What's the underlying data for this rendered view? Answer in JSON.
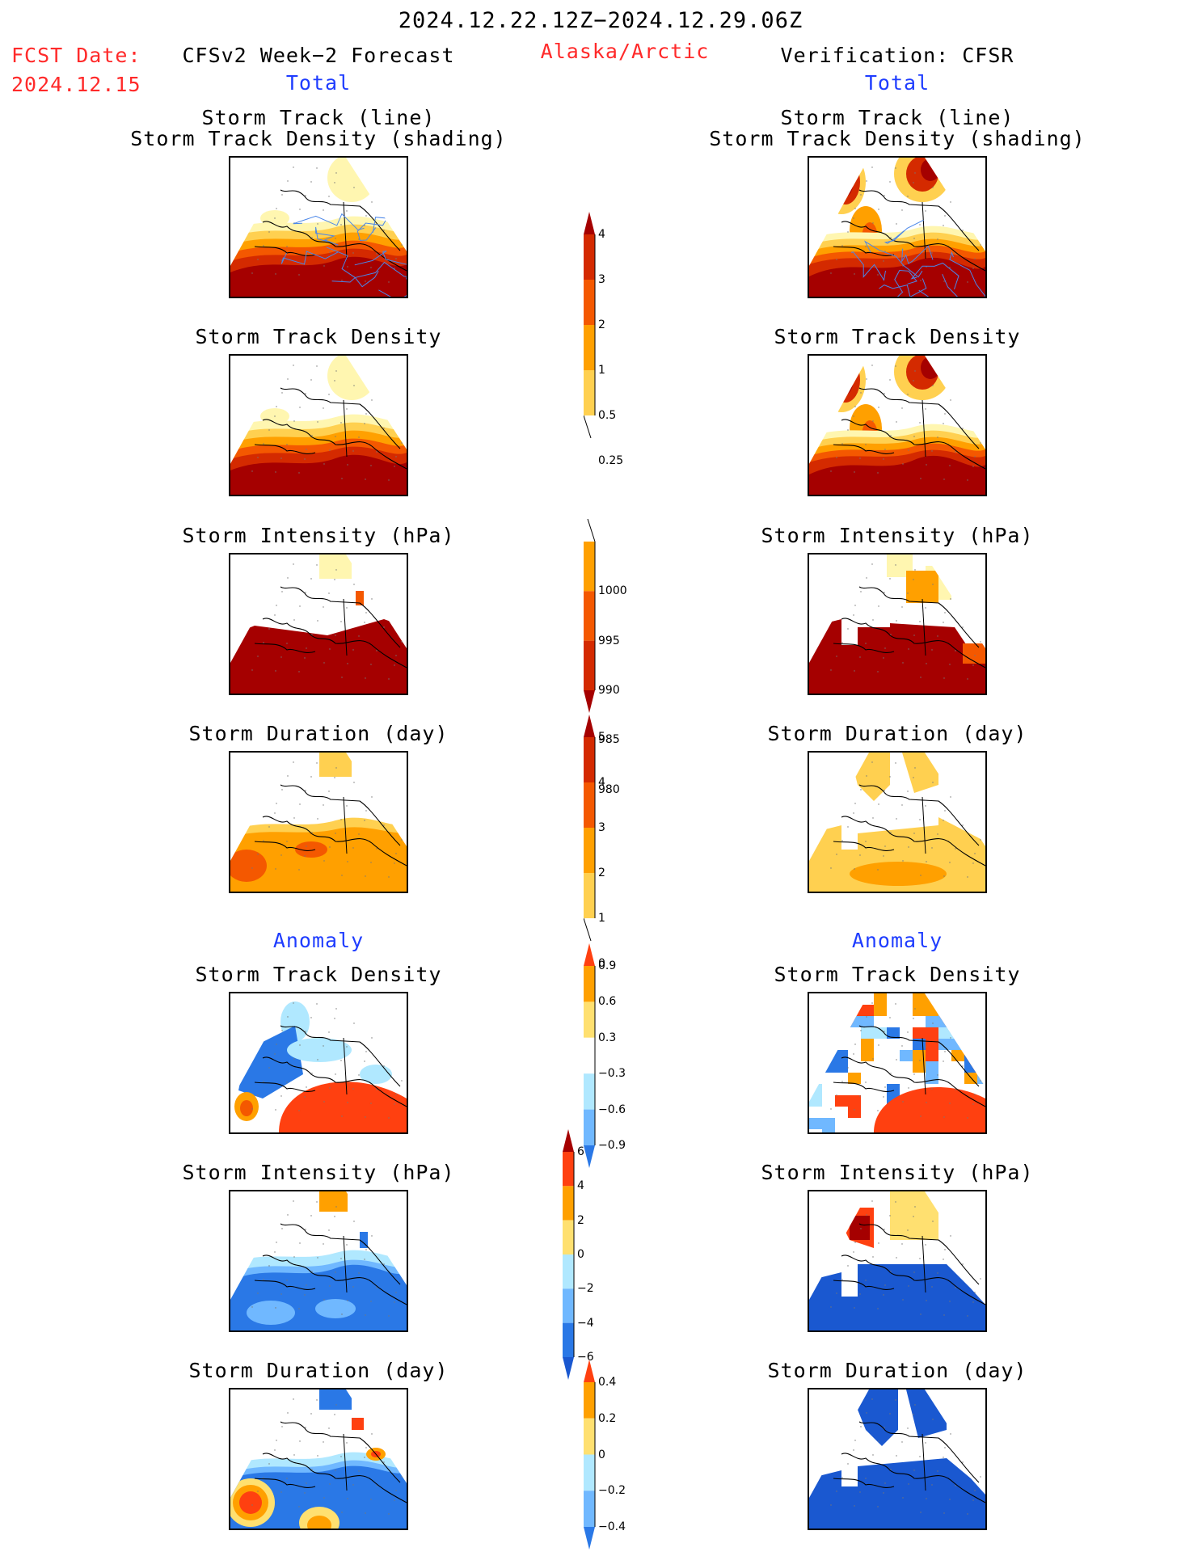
{
  "header": {
    "period": "2024.12.22.12Z−2024.12.29.06Z",
    "fcst_label": "FCST Date:",
    "fcst_date": "2024.12.15",
    "left_title": "CFSv2 Week−2 Forecast",
    "region": "Alaska/Arctic",
    "right_title": "Verification: CFSR",
    "total_left": "Total",
    "total_right": "Total",
    "anomaly_left": "Anomaly",
    "anomaly_right": "Anomaly"
  },
  "panel_titles": {
    "track_line": "Storm Track (line)",
    "track_density_shading": "Storm Track Density (shading)",
    "density": "Storm Track Density",
    "intensity": "Storm Intensity (hPa)",
    "duration": "Storm Duration (day)"
  },
  "colorbars": {
    "density_total": {
      "labels": [
        "4",
        "3",
        "2",
        "1",
        "0.5",
        "0.25"
      ],
      "colors": [
        "#a50000",
        "#d42a00",
        "#f45800",
        "#ffa000",
        "#ffd050",
        "#fff6b0"
      ]
    },
    "intensity_total": {
      "labels": [
        "1000",
        "995",
        "990",
        "985",
        "980"
      ],
      "colors": [
        "#fff6b0",
        "#ffa000",
        "#f45800",
        "#d42a00",
        "#a50000"
      ]
    },
    "duration_total": {
      "labels": [
        "5",
        "4",
        "3",
        "2",
        "1",
        "0"
      ],
      "colors": [
        "#a50000",
        "#d42a00",
        "#f45800",
        "#ffa000",
        "#ffd050",
        "#fff6b0"
      ]
    },
    "density_anom": {
      "labels": [
        "0.9",
        "0.6",
        "0.3",
        "−0.3",
        "−0.6",
        "−0.9"
      ],
      "colors": [
        "#ff4010",
        "#ffa000",
        "#ffe070",
        "#ffffff",
        "#b0e8ff",
        "#70b8ff",
        "#2a78e6"
      ]
    },
    "intensity_anom": {
      "labels": [
        "6",
        "4",
        "2",
        "0",
        "−2",
        "−4",
        "−6"
      ],
      "colors": [
        "#a50000",
        "#ff4010",
        "#ffa000",
        "#ffe070",
        "#b0e8ff",
        "#70b8ff",
        "#2a78e6",
        "#1a58d0"
      ]
    },
    "duration_anom": {
      "labels": [
        "0.4",
        "0.2",
        "0",
        "−0.2",
        "−0.4"
      ],
      "colors": [
        "#ff4010",
        "#ffa000",
        "#ffe070",
        "#b0e8ff",
        "#70b8ff",
        "#2a78e6"
      ]
    }
  }
}
